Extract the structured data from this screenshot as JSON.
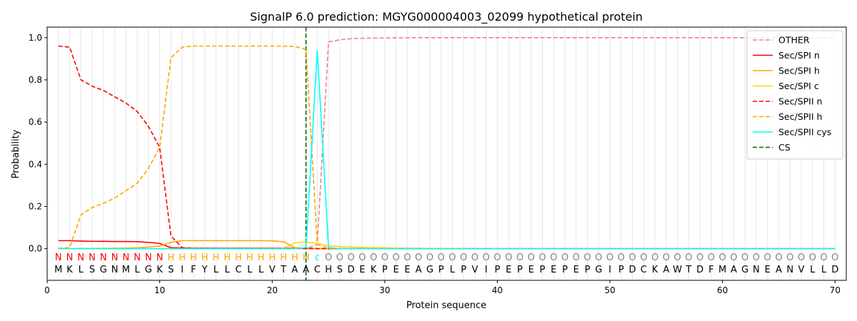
{
  "chart_data": {
    "type": "line",
    "title": "SignalP 6.0 prediction: MGYG000004003_02099 hypothetical protein",
    "xlabel": "Protein sequence",
    "ylabel": "Probability",
    "xlim": [
      0,
      71
    ],
    "ylim": [
      -0.15,
      1.05
    ],
    "x_ticks": [
      0,
      10,
      20,
      30,
      40,
      50,
      60,
      70
    ],
    "y_ticks": [
      0.0,
      0.2,
      0.4,
      0.6,
      0.8,
      1.0
    ],
    "x_tick_labels": [
      "0",
      "10",
      "20",
      "30",
      "40",
      "50",
      "60",
      "70"
    ],
    "y_tick_labels": [
      "0.0",
      "0.2",
      "0.4",
      "0.6",
      "0.8",
      "1.0"
    ],
    "grid": "vertical lines at each residue",
    "legend_position": "top-right",
    "sequence": [
      "M",
      "K",
      "L",
      "S",
      "G",
      "N",
      "M",
      "L",
      "G",
      "K",
      "S",
      "I",
      "F",
      "Y",
      "L",
      "L",
      "C",
      "L",
      "L",
      "V",
      "T",
      "A",
      "A",
      "C",
      "H",
      "S",
      "D",
      "E",
      "K",
      "P",
      "E",
      "E",
      "A",
      "G",
      "P",
      "L",
      "P",
      "V",
      "I",
      "P",
      "E",
      "P",
      "E",
      "P",
      "E",
      "P",
      "E",
      "P",
      "G",
      "I",
      "P",
      "D",
      "C",
      "K",
      "A",
      "W",
      "T",
      "D",
      "F",
      "M",
      "A",
      "G",
      "N",
      "E",
      "A",
      "N",
      "V",
      "L",
      "L",
      "D"
    ],
    "annotation": [
      "N",
      "N",
      "N",
      "N",
      "N",
      "N",
      "N",
      "N",
      "N",
      "N",
      "H",
      "H",
      "H",
      "H",
      "H",
      "H",
      "H",
      "H",
      "H",
      "H",
      "H",
      "H",
      "H",
      "c",
      "O",
      "O",
      "O",
      "O",
      "O",
      "O",
      "O",
      "O",
      "O",
      "O",
      "O",
      "O",
      "O",
      "O",
      "O",
      "O",
      "O",
      "O",
      "O",
      "O",
      "O",
      "O",
      "O",
      "O",
      "O",
      "O",
      "O",
      "O",
      "O",
      "O",
      "O",
      "O",
      "O",
      "O",
      "O",
      "O",
      "O",
      "O",
      "O",
      "O",
      "O",
      "O",
      "O",
      "O",
      "O",
      "O"
    ],
    "annotation_colors": {
      "N": "#ff0000",
      "H": "#ffa500",
      "c": "#00ffff",
      "O": "#808080"
    },
    "cleavage_site": 23,
    "series": [
      {
        "name": "OTHER",
        "color": "#f08080",
        "dash": true,
        "values": [
          0.0,
          0.0,
          0.0,
          0.0,
          0.0,
          0.0,
          0.0,
          0.0,
          0.0,
          0.0,
          0.0,
          0.0,
          0.0,
          0.0,
          0.0,
          0.0,
          0.0,
          0.0,
          0.0,
          0.0,
          0.0,
          0.0,
          0.0,
          0.02,
          0.98,
          0.99,
          0.995,
          0.997,
          0.998,
          0.998,
          0.999,
          0.999,
          1.0,
          1.0,
          1.0,
          1.0,
          1.0,
          1.0,
          1.0,
          1.0,
          1.0,
          1.0,
          1.0,
          1.0,
          1.0,
          1.0,
          1.0,
          1.0,
          1.0,
          1.0,
          1.0,
          1.0,
          1.0,
          1.0,
          1.0,
          1.0,
          1.0,
          1.0,
          1.0,
          1.0,
          1.0,
          1.0,
          1.0,
          1.0,
          1.0,
          1.0,
          1.0,
          1.0,
          1.0,
          1.0
        ]
      },
      {
        "name": "Sec/SPI n",
        "color": "#ff0000",
        "dash": false,
        "values": [
          0.038,
          0.038,
          0.036,
          0.035,
          0.035,
          0.034,
          0.034,
          0.033,
          0.03,
          0.025,
          0.005,
          0.003,
          0.002,
          0.002,
          0.002,
          0.002,
          0.002,
          0.002,
          0.002,
          0.002,
          0.002,
          0.002,
          0.002,
          0.001,
          0.0,
          0.0,
          0.0,
          0.0,
          0.0,
          0.0,
          0.0,
          0.0,
          0.0,
          0.0,
          0.0,
          0.0,
          0.0,
          0.0,
          0.0,
          0.0,
          0.0,
          0.0,
          0.0,
          0.0,
          0.0,
          0.0,
          0.0,
          0.0,
          0.0,
          0.0,
          0.0,
          0.0,
          0.0,
          0.0,
          0.0,
          0.0,
          0.0,
          0.0,
          0.0,
          0.0,
          0.0,
          0.0,
          0.0,
          0.0,
          0.0,
          0.0,
          0.0,
          0.0,
          0.0,
          0.0
        ]
      },
      {
        "name": "Sec/SPI h",
        "color": "#ffa500",
        "dash": false,
        "values": [
          0.0,
          0.0,
          0.001,
          0.001,
          0.002,
          0.002,
          0.003,
          0.004,
          0.008,
          0.013,
          0.03,
          0.038,
          0.038,
          0.038,
          0.038,
          0.038,
          0.038,
          0.038,
          0.038,
          0.037,
          0.033,
          0.005,
          0.003,
          0.001,
          0.0,
          0.0,
          0.0,
          0.0,
          0.0,
          0.0,
          0.0,
          0.0,
          0.0,
          0.0,
          0.0,
          0.0,
          0.0,
          0.0,
          0.0,
          0.0,
          0.0,
          0.0,
          0.0,
          0.0,
          0.0,
          0.0,
          0.0,
          0.0,
          0.0,
          0.0,
          0.0,
          0.0,
          0.0,
          0.0,
          0.0,
          0.0,
          0.0,
          0.0,
          0.0,
          0.0,
          0.0,
          0.0,
          0.0,
          0.0,
          0.0,
          0.0,
          0.0,
          0.0,
          0.0,
          0.0
        ]
      },
      {
        "name": "Sec/SPI c",
        "color": "#ffd700",
        "dash": false,
        "values": [
          0.0,
          0.0,
          0.0,
          0.0,
          0.0,
          0.0,
          0.0,
          0.0,
          0.0,
          0.0,
          0.0,
          0.0,
          0.0,
          0.0,
          0.0,
          0.0,
          0.0,
          0.0,
          0.0,
          0.0,
          0.002,
          0.028,
          0.032,
          0.025,
          0.014,
          0.01,
          0.008,
          0.006,
          0.005,
          0.004,
          0.003,
          0.002,
          0.002,
          0.001,
          0.001,
          0.001,
          0.0,
          0.0,
          0.0,
          0.0,
          0.0,
          0.0,
          0.0,
          0.0,
          0.0,
          0.0,
          0.0,
          0.0,
          0.0,
          0.0,
          0.0,
          0.0,
          0.0,
          0.0,
          0.0,
          0.0,
          0.0,
          0.0,
          0.0,
          0.0,
          0.0,
          0.0,
          0.0,
          0.0,
          0.0,
          0.0,
          0.0,
          0.0,
          0.0,
          0.0
        ]
      },
      {
        "name": "Sec/SPII n",
        "color": "#ff0000",
        "dash": true,
        "values": [
          0.96,
          0.955,
          0.8,
          0.77,
          0.75,
          0.72,
          0.69,
          0.65,
          0.58,
          0.48,
          0.06,
          0.005,
          0.002,
          0.002,
          0.001,
          0.001,
          0.001,
          0.001,
          0.001,
          0.001,
          0.001,
          0.001,
          0.001,
          0.0,
          0.0,
          0.0,
          0.0,
          0.0,
          0.0,
          0.0,
          0.0,
          0.0,
          0.0,
          0.0,
          0.0,
          0.0,
          0.0,
          0.0,
          0.0,
          0.0,
          0.0,
          0.0,
          0.0,
          0.0,
          0.0,
          0.0,
          0.0,
          0.0,
          0.0,
          0.0,
          0.0,
          0.0,
          0.0,
          0.0,
          0.0,
          0.0,
          0.0,
          0.0,
          0.0,
          0.0,
          0.0,
          0.0,
          0.0,
          0.0,
          0.0,
          0.0,
          0.0,
          0.0,
          0.0,
          0.0
        ]
      },
      {
        "name": "Sec/SPII h",
        "color": "#ffa500",
        "dash": true,
        "values": [
          0.002,
          0.005,
          0.16,
          0.195,
          0.215,
          0.24,
          0.275,
          0.31,
          0.38,
          0.48,
          0.905,
          0.955,
          0.96,
          0.96,
          0.96,
          0.96,
          0.96,
          0.96,
          0.96,
          0.96,
          0.96,
          0.958,
          0.945,
          0.02,
          0.002,
          0.001,
          0.0,
          0.0,
          0.0,
          0.0,
          0.0,
          0.0,
          0.0,
          0.0,
          0.0,
          0.0,
          0.0,
          0.0,
          0.0,
          0.0,
          0.0,
          0.0,
          0.0,
          0.0,
          0.0,
          0.0,
          0.0,
          0.0,
          0.0,
          0.0,
          0.0,
          0.0,
          0.0,
          0.0,
          0.0,
          0.0,
          0.0,
          0.0,
          0.0,
          0.0,
          0.0,
          0.0,
          0.0,
          0.0,
          0.0,
          0.0,
          0.0,
          0.0,
          0.0,
          0.0
        ]
      },
      {
        "name": "Sec/SPII cys",
        "color": "#00ffff",
        "dash": false,
        "values": [
          0.0,
          0.0,
          0.0,
          0.0,
          0.0,
          0.0,
          0.0,
          0.0,
          0.0,
          0.0,
          0.0,
          0.0,
          0.0,
          0.0,
          0.0,
          0.0,
          0.0,
          0.0,
          0.0,
          0.0,
          0.0,
          0.0,
          0.005,
          0.94,
          0.005,
          0.0,
          0.0,
          0.0,
          0.0,
          0.0,
          0.0,
          0.0,
          0.0,
          0.0,
          0.0,
          0.0,
          0.0,
          0.0,
          0.0,
          0.0,
          0.0,
          0.0,
          0.0,
          0.0,
          0.0,
          0.0,
          0.0,
          0.0,
          0.0,
          0.0,
          0.0,
          0.0,
          0.0,
          0.0,
          0.0,
          0.0,
          0.0,
          0.0,
          0.0,
          0.0,
          0.0,
          0.0,
          0.0,
          0.0,
          0.0,
          0.0,
          0.0,
          0.0,
          0.0,
          0.0
        ]
      }
    ],
    "cs_legend": {
      "name": "CS",
      "color": "#006400",
      "dash": true
    }
  }
}
